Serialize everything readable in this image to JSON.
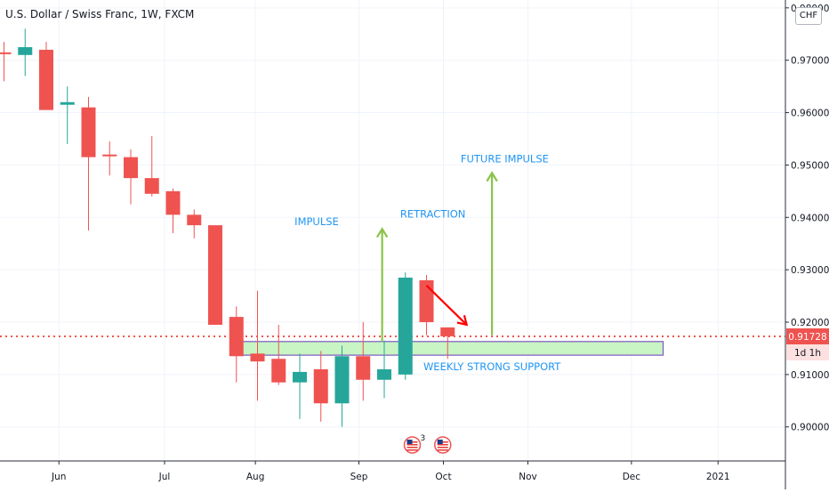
{
  "header": {
    "title": "U.S. Dollar / Swiss Franc, 1W, FXCM"
  },
  "currency": "CHF",
  "price_badge": {
    "value": "0.91728",
    "countdown": "1d 1h",
    "color": "#ef5350"
  },
  "colors": {
    "up": "#26a69a",
    "down": "#ef5350",
    "arrow_green": "#8bc34a",
    "arrow_red": "#ff0000",
    "annotation_text": "#2196f3",
    "support_fill": "#c8f5c3",
    "support_border": "#7e57c2"
  },
  "events": {
    "count_label": "3",
    "icon": "us-flag-icon"
  },
  "chart_data": {
    "type": "candlestick",
    "title": "U.S. Dollar / Swiss Franc, 1W, FXCM",
    "ylim": [
      0.8935,
      0.9815
    ],
    "y_ticks": [
      "0.98000",
      "0.97000",
      "0.96000",
      "0.95000",
      "0.94000",
      "0.93000",
      "0.92000",
      "0.91000",
      "0.90000"
    ],
    "y_tick_values": [
      0.98,
      0.97,
      0.96,
      0.95,
      0.94,
      0.93,
      0.92,
      0.91,
      0.9
    ],
    "x_labels": [
      {
        "label": "Jun",
        "index": 2.6
      },
      {
        "label": "Jul",
        "index": 7.6
      },
      {
        "label": "Aug",
        "index": 11.9
      },
      {
        "label": "Sep",
        "index": 16.8
      },
      {
        "label": "Oct",
        "index": 20.8
      },
      {
        "label": "Nov",
        "index": 24.8
      },
      {
        "label": "Dec",
        "index": 29.7
      },
      {
        "label": "2021",
        "index": 33.8
      }
    ],
    "grid": true,
    "candles": [
      {
        "o": 0.9715,
        "h": 0.9735,
        "l": 0.966,
        "c": 0.9715
      },
      {
        "o": 0.971,
        "h": 0.976,
        "l": 0.967,
        "c": 0.9725
      },
      {
        "o": 0.972,
        "h": 0.9735,
        "l": 0.9605,
        "c": 0.9605
      },
      {
        "o": 0.9615,
        "h": 0.965,
        "l": 0.954,
        "c": 0.962
      },
      {
        "o": 0.961,
        "h": 0.963,
        "l": 0.9375,
        "c": 0.9515
      },
      {
        "o": 0.952,
        "h": 0.9545,
        "l": 0.948,
        "c": 0.952
      },
      {
        "o": 0.9515,
        "h": 0.953,
        "l": 0.9425,
        "c": 0.9475
      },
      {
        "o": 0.9475,
        "h": 0.9555,
        "l": 0.944,
        "c": 0.9445
      },
      {
        "o": 0.945,
        "h": 0.9455,
        "l": 0.937,
        "c": 0.9405
      },
      {
        "o": 0.9405,
        "h": 0.9415,
        "l": 0.936,
        "c": 0.9385
      },
      {
        "o": 0.9385,
        "h": 0.9385,
        "l": 0.9195,
        "c": 0.9195
      },
      {
        "o": 0.921,
        "h": 0.923,
        "l": 0.9085,
        "c": 0.9135
      },
      {
        "o": 0.914,
        "h": 0.926,
        "l": 0.905,
        "c": 0.9125
      },
      {
        "o": 0.913,
        "h": 0.9195,
        "l": 0.908,
        "c": 0.9085
      },
      {
        "o": 0.9085,
        "h": 0.914,
        "l": 0.9015,
        "c": 0.9105
      },
      {
        "o": 0.911,
        "h": 0.9145,
        "l": 0.901,
        "c": 0.9045
      },
      {
        "o": 0.9045,
        "h": 0.9155,
        "l": 0.9,
        "c": 0.9135
      },
      {
        "o": 0.9135,
        "h": 0.92,
        "l": 0.905,
        "c": 0.909
      },
      {
        "o": 0.909,
        "h": 0.9165,
        "l": 0.9055,
        "c": 0.911
      },
      {
        "o": 0.91,
        "h": 0.9295,
        "l": 0.909,
        "c": 0.9285
      },
      {
        "o": 0.928,
        "h": 0.929,
        "l": 0.9175,
        "c": 0.92
      },
      {
        "o": 0.919,
        "h": 0.919,
        "l": 0.913,
        "c": 0.9173
      }
    ],
    "current_price": 0.91728,
    "support_zone": {
      "label": "WEEKLY STRONG SUPPORT",
      "y_low": 0.9137,
      "y_high": 0.9163,
      "x_start": 10.7,
      "x_end": 31.2
    },
    "annotations": [
      {
        "text": "IMPULSE",
        "x": 14.8,
        "y": 0.9385
      },
      {
        "text": "RETRACTION",
        "x": 20.3,
        "y": 0.94
      },
      {
        "text": "FUTURE IMPULSE",
        "x": 23.7,
        "y": 0.9505
      },
      {
        "text": "WEEKLY STRONG SUPPORT",
        "x": 23.1,
        "y": 0.9108
      }
    ],
    "arrows": [
      {
        "name": "impulse-arrow",
        "color": "green",
        "x1": 17.9,
        "y1": 0.9163,
        "x2": 17.9,
        "y2": 0.9378
      },
      {
        "name": "future-impulse-arrow",
        "color": "green",
        "x1": 23.1,
        "y1": 0.9175,
        "x2": 23.1,
        "y2": 0.9485
      },
      {
        "name": "retraction-arrow",
        "color": "red",
        "x1": 20.0,
        "y1": 0.927,
        "x2": 21.9,
        "y2": 0.9195
      }
    ]
  }
}
